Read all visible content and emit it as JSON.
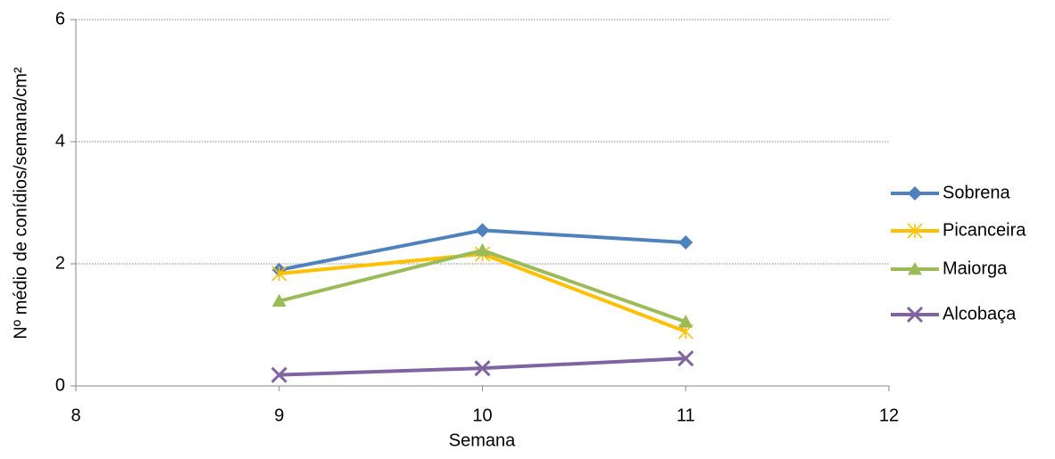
{
  "chart_data": {
    "type": "line",
    "x_label": "Semana",
    "y_label": "Nº médio de conídios/semana/cm²",
    "x": [
      9,
      10,
      11
    ],
    "series": [
      {
        "name": "Sobrena",
        "color": "#4F81BD",
        "marker": "diamond",
        "values": [
          1.9,
          2.55,
          2.35
        ]
      },
      {
        "name": "Picanceira",
        "color": "#FFC000",
        "marker": "asterisk",
        "values": [
          1.84,
          2.16,
          0.89
        ]
      },
      {
        "name": "Maiorga",
        "color": "#9BBB59",
        "marker": "triangle",
        "values": [
          1.39,
          2.22,
          1.05
        ]
      },
      {
        "name": "Alcobaça",
        "color": "#8064A2",
        "marker": "x",
        "values": [
          0.18,
          0.29,
          0.45
        ]
      }
    ],
    "xlim": [
      8,
      12
    ],
    "xticks": [
      8,
      9,
      10,
      11,
      12
    ],
    "ylim": [
      0,
      6
    ],
    "yticks": [
      0,
      2,
      4,
      6
    ],
    "grid": true,
    "legend": "right"
  }
}
